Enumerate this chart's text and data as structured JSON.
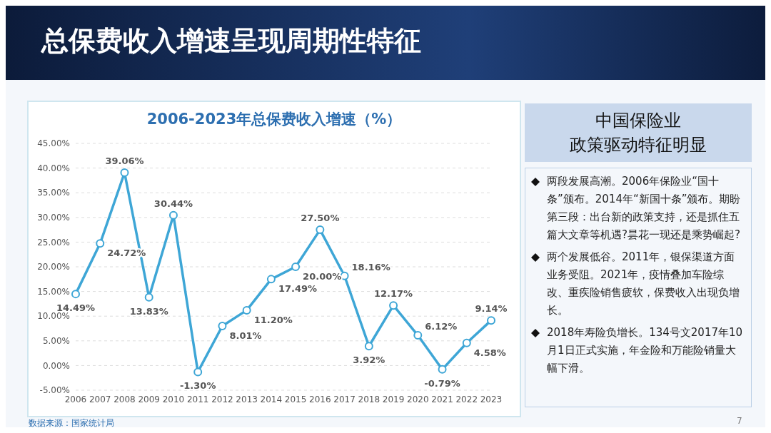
{
  "chart_data": [
    {
      "type": "line",
      "title": "2006-2023年总保费收入增速（%）",
      "categories": [
        "2006",
        "2007",
        "2008",
        "2009",
        "2010",
        "2011",
        "2012",
        "2013",
        "2014",
        "2015",
        "2016",
        "2017",
        "2018",
        "2019",
        "2020",
        "2021",
        "2022",
        "2023"
      ],
      "series": [
        {
          "color": "#3ea6d6",
          "values": [
            14.49,
            24.72,
            39.06,
            13.83,
            30.44,
            -1.3,
            8.01,
            11.2,
            17.49,
            20.0,
            27.5,
            18.16,
            3.92,
            12.17,
            6.12,
            -0.79,
            4.58,
            9.14
          ],
          "value_labels": [
            "14.49%",
            "24.72%",
            "39.06%",
            "13.83%",
            "30.44%",
            "-1.30%",
            "8.01%",
            "11.20%",
            "17.49%",
            "20.00%",
            "27.50%",
            "18.16%",
            "3.92%",
            "12.17%",
            "6.12%",
            "-0.79%",
            "4.58%",
            "9.14%"
          ]
        }
      ],
      "ylim": [
        -5,
        45
      ],
      "yticks": [
        {
          "value": -5,
          "label": "-5.00%"
        },
        {
          "value": 0,
          "label": "0.00%"
        },
        {
          "value": 5,
          "label": "5.00%"
        },
        {
          "value": 10,
          "label": "10.00%"
        },
        {
          "value": 15,
          "label": "15.00%"
        },
        {
          "value": 20,
          "label": "20.00%"
        },
        {
          "value": 25,
          "label": "25.00%"
        },
        {
          "value": 30,
          "label": "30.00%"
        },
        {
          "value": 35,
          "label": "35.00%"
        },
        {
          "value": 40,
          "label": "40.00%"
        },
        {
          "value": 45,
          "label": "45.00%"
        }
      ],
      "grid": "y",
      "marker": "circle",
      "line_style": "solid",
      "legend": false,
      "annotations": [
        "总保费收入增速呈现周期性特征",
        "数据来源：国家统计局",
        "7"
      ]
    },
    {
      "type": "other",
      "title": "中国保险业",
      "subtitle": "政策驱动特征明显",
      "annotations": [
        "两段发展高潮。2006年保险业“国十条”颁布。2014年“新国十条”颁布。期盼第三段：出台新的政策支持，还是抓住五篇大文章等机遇?昙花一现还是乘势崛起?",
        "两个发展低谷。2011年，银保渠道方面业务受阻。2021年，疫情叠加车险综改、重疾险销售疲软，保费收入出现负增长。",
        "2018年寿险负增长。134号文2017年10月1日正式实施，年金险和万能险销量大幅下滑。"
      ]
    }
  ]
}
